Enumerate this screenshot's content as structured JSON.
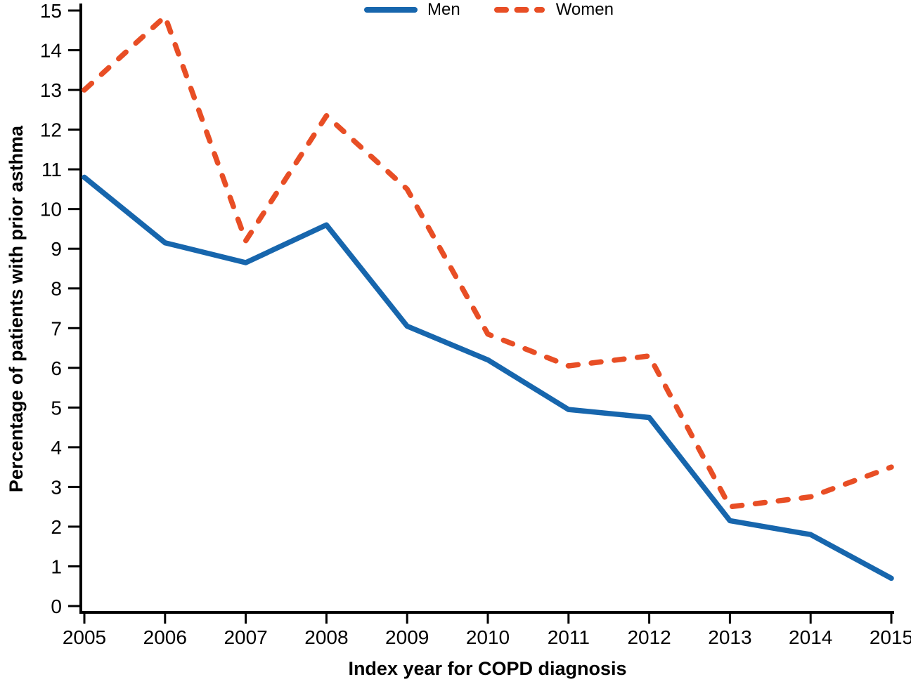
{
  "chart_data": {
    "type": "line",
    "x": [
      2005,
      2006,
      2007,
      2008,
      2009,
      2010,
      2011,
      2012,
      2013,
      2014,
      2015
    ],
    "xlabel": "Index year for COPD diagnosis",
    "ylabel": "Percentage of patients with prior asthma",
    "ylim": [
      0,
      15
    ],
    "ytick_interval": 1,
    "grid": false,
    "legend_position": "top-center",
    "axis_color": "#000000",
    "series": [
      {
        "name": "Men",
        "line_style": "solid",
        "color": "#1766ad",
        "values": [
          10.8,
          9.15,
          8.65,
          9.6,
          7.05,
          6.2,
          4.95,
          4.75,
          2.15,
          1.8,
          0.7
        ]
      },
      {
        "name": "Women",
        "line_style": "dashed",
        "color": "#e84e25",
        "values": [
          13.0,
          14.85,
          9.2,
          12.35,
          10.5,
          6.85,
          6.05,
          6.3,
          2.5,
          2.75,
          3.5
        ]
      }
    ]
  }
}
